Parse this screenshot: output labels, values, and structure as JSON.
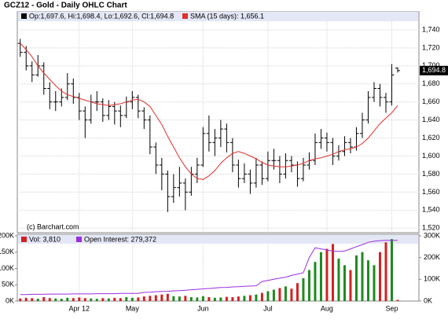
{
  "chart_data": [
    {
      "type": "ohlc",
      "title": "GCZ12 - Gold - Daily OHLC Chart",
      "annotation": "(c) Barchart.com",
      "last_label": "1,694.8",
      "ylim": [
        1515,
        1760
      ],
      "yticks": [
        {
          "value": 1520,
          "label": "1,520"
        },
        {
          "value": 1540,
          "label": "1,540"
        },
        {
          "value": 1560,
          "label": "1,560"
        },
        {
          "value": 1580,
          "label": "1,580"
        },
        {
          "value": 1600,
          "label": "1,600"
        },
        {
          "value": 1620,
          "label": "1,620"
        },
        {
          "value": 1640,
          "label": "1,640"
        },
        {
          "value": 1660,
          "label": "1,660"
        },
        {
          "value": 1680,
          "label": "1,680"
        },
        {
          "value": 1700,
          "label": "1,700"
        },
        {
          "value": 1720,
          "label": "1,720"
        },
        {
          "value": 1740,
          "label": "1,740"
        }
      ],
      "grid": true,
      "series": [
        {
          "name": "Op:1,697.6, Hi:1,698.4, Lo:1,692.6, Cl:1,694.8",
          "color": "#000000",
          "open": [
            1725,
            1715,
            1700,
            1690,
            1700,
            1675,
            1660,
            1660,
            1665,
            1680,
            1665,
            1650,
            1640,
            1660,
            1660,
            1645,
            1655,
            1650,
            1645,
            1660,
            1665,
            1650,
            1640,
            1610,
            1590,
            1580,
            1555,
            1565,
            1570,
            1560,
            1580,
            1590,
            1625,
            1615,
            1620,
            1630,
            1615,
            1590,
            1575,
            1580,
            1570,
            1590,
            1575,
            1595,
            1595,
            1580,
            1595,
            1590,
            1575,
            1590,
            1595,
            1615,
            1620,
            1615,
            1600,
            1605,
            1615,
            1610,
            1625,
            1640,
            1665,
            1675,
            1665,
            1660,
            1697.6
          ],
          "high": [
            1730,
            1722,
            1705,
            1712,
            1704,
            1682,
            1672,
            1675,
            1692,
            1686,
            1670,
            1655,
            1668,
            1672,
            1664,
            1662,
            1660,
            1656,
            1666,
            1672,
            1668,
            1654,
            1645,
            1615,
            1598,
            1584,
            1580,
            1588,
            1575,
            1588,
            1598,
            1632,
            1645,
            1630,
            1640,
            1636,
            1620,
            1596,
            1592,
            1585,
            1598,
            1594,
            1605,
            1608,
            1600,
            1603,
            1600,
            1594,
            1598,
            1604,
            1625,
            1630,
            1626,
            1620,
            1612,
            1622,
            1620,
            1632,
            1648,
            1672,
            1682,
            1680,
            1670,
            1702,
            1698.4
          ],
          "low": [
            1710,
            1695,
            1682,
            1688,
            1668,
            1652,
            1650,
            1655,
            1662,
            1658,
            1640,
            1620,
            1636,
            1650,
            1638,
            1640,
            1635,
            1632,
            1642,
            1652,
            1642,
            1630,
            1602,
            1580,
            1562,
            1538,
            1548,
            1555,
            1540,
            1556,
            1570,
            1588,
            1605,
            1600,
            1610,
            1604,
            1582,
            1565,
            1570,
            1558,
            1565,
            1568,
            1572,
            1585,
            1570,
            1575,
            1582,
            1566,
            1572,
            1585,
            1590,
            1608,
            1605,
            1590,
            1595,
            1600,
            1603,
            1606,
            1620,
            1636,
            1660,
            1655,
            1648,
            1656,
            1692.6
          ],
          "close": [
            1715,
            1700,
            1690,
            1700,
            1675,
            1660,
            1660,
            1665,
            1680,
            1665,
            1650,
            1640,
            1660,
            1660,
            1645,
            1655,
            1650,
            1645,
            1660,
            1665,
            1650,
            1640,
            1610,
            1590,
            1580,
            1555,
            1565,
            1570,
            1560,
            1580,
            1590,
            1625,
            1615,
            1620,
            1630,
            1615,
            1590,
            1575,
            1580,
            1570,
            1590,
            1575,
            1595,
            1595,
            1580,
            1595,
            1590,
            1575,
            1590,
            1595,
            1615,
            1620,
            1615,
            1600,
            1605,
            1615,
            1610,
            1625,
            1640,
            1665,
            1675,
            1665,
            1660,
            1690,
            1694.8
          ]
        },
        {
          "name": "SMA (15 days): 1,656.1",
          "color": "#e0302a",
          "values": [
            1725,
            1718,
            1710,
            1700,
            1692,
            1685,
            1678,
            1672,
            1668,
            1666,
            1664,
            1662,
            1660,
            1658,
            1657,
            1656,
            1657,
            1658,
            1660,
            1662,
            1663,
            1660,
            1655,
            1645,
            1635,
            1622,
            1610,
            1598,
            1588,
            1580,
            1575,
            1574,
            1578,
            1584,
            1592,
            1598,
            1603,
            1605,
            1603,
            1600,
            1597,
            1593,
            1590,
            1589,
            1588,
            1588,
            1589,
            1590,
            1592,
            1595,
            1597,
            1598,
            1600,
            1602,
            1605,
            1607,
            1608,
            1610,
            1614,
            1620,
            1628,
            1636,
            1642,
            1648,
            1656.1
          ]
        }
      ]
    },
    {
      "type": "bar",
      "xlim": [
        -0.5,
        67.6
      ],
      "xticks": [
        {
          "value": 10,
          "label": "Apr 12"
        },
        {
          "value": 19,
          "label": "May"
        },
        {
          "value": 31,
          "label": "Jun"
        },
        {
          "value": 42,
          "label": "Jul"
        },
        {
          "value": 52,
          "label": "Aug"
        },
        {
          "value": 63,
          "label": "Sep"
        }
      ],
      "ylim": [
        0,
        200000
      ],
      "yticks": [
        {
          "value": 0,
          "label": "0K"
        },
        {
          "value": 50000,
          "label": "50K"
        },
        {
          "value": 100000,
          "label": "100K"
        },
        {
          "value": 150000,
          "label": "150K"
        },
        {
          "value": 200000,
          "label": "200K"
        }
      ],
      "y2lim": [
        0,
        300000
      ],
      "y2ticks": [
        {
          "value": 0,
          "label": "0K"
        },
        {
          "value": 100000,
          "label": "100K"
        },
        {
          "value": 200000,
          "label": "200K"
        },
        {
          "value": 300000,
          "label": "300K"
        }
      ],
      "up_color": "#1f8a1f",
      "down_color": "#d42020",
      "series": [
        {
          "name": "Vol: 3,810",
          "color": "#d42020",
          "values": [
            8000,
            10000,
            9000,
            7000,
            12000,
            9000,
            8000,
            7000,
            10000,
            9000,
            11000,
            9000,
            8000,
            7000,
            9000,
            8000,
            10000,
            9000,
            12000,
            10000,
            11000,
            14000,
            16000,
            18000,
            20000,
            22000,
            15000,
            14000,
            16000,
            12000,
            11000,
            15000,
            12000,
            10000,
            11000,
            13000,
            12000,
            14000,
            16000,
            18000,
            20000,
            25000,
            30000,
            35000,
            40000,
            45000,
            38000,
            55000,
            70000,
            95000,
            120000,
            150000,
            160000,
            175000,
            130000,
            110000,
            95000,
            140000,
            150000,
            125000,
            110000,
            150000,
            180000,
            190000,
            3810
          ]
        },
        {
          "name": "Open Interest: 279,372",
          "color": "#9a2ee0",
          "axis": "y2",
          "values": [
            30000,
            30000,
            31000,
            31000,
            31000,
            32000,
            32000,
            32000,
            32000,
            33000,
            33000,
            33000,
            33000,
            34000,
            34000,
            34000,
            34000,
            35000,
            35000,
            35000,
            35000,
            40000,
            41000,
            43000,
            44000,
            45000,
            47000,
            48000,
            50000,
            52000,
            54000,
            56000,
            58000,
            60000,
            62000,
            63000,
            65000,
            66000,
            68000,
            69000,
            70000,
            90000,
            95000,
            100000,
            105000,
            110000,
            118000,
            124000,
            130000,
            200000,
            245000,
            240000,
            235000,
            230000,
            228000,
            230000,
            240000,
            250000,
            260000,
            270000,
            275000,
            278000,
            279000,
            279000,
            279372
          ]
        }
      ]
    }
  ]
}
